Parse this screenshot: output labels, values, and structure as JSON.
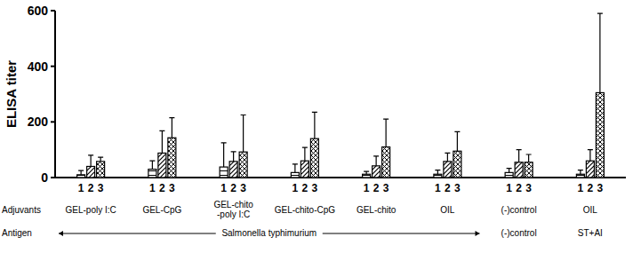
{
  "chart_data": {
    "type": "bar",
    "y_label": "ELISA titer",
    "adjuvants_label": "Adjuvants",
    "antigen_label": "Antigen",
    "categories": [
      "GEL-poly I:C",
      "GEL-CpG",
      "GEL-chito\n-poly I:C",
      "GEL-chito-CpG",
      "GEL-chito",
      "OIL",
      "(-)control",
      "OIL"
    ],
    "antigens": [
      "Salmonella typhimurium",
      "Salmonella typhimurium",
      "Salmonella typhimurium",
      "Salmonella typhimurium",
      "Salmonella typhimurium",
      "Salmonella typhimurium",
      "(-)control",
      "ST+AI"
    ],
    "series": [
      {
        "name": "1",
        "color": "#000000",
        "values": [
          10,
          30,
          38,
          18,
          12,
          12,
          18,
          12
        ],
        "errors": [
          15,
          30,
          87,
          30,
          10,
          15,
          15,
          15
        ]
      },
      {
        "name": "2",
        "color": "#000000",
        "values": [
          40,
          88,
          58,
          60,
          42,
          58,
          55,
          60
        ],
        "errors": [
          40,
          80,
          35,
          48,
          35,
          30,
          45,
          40
        ]
      },
      {
        "name": "3",
        "color": "#000000",
        "values": [
          58,
          143,
          92,
          140,
          110,
          95,
          55,
          305
        ],
        "errors": [
          15,
          72,
          133,
          95,
          100,
          70,
          28,
          285
        ]
      }
    ],
    "ylim": [
      0,
      600
    ],
    "yticks": [
      0,
      200,
      400,
      600
    ],
    "grid": false
  }
}
